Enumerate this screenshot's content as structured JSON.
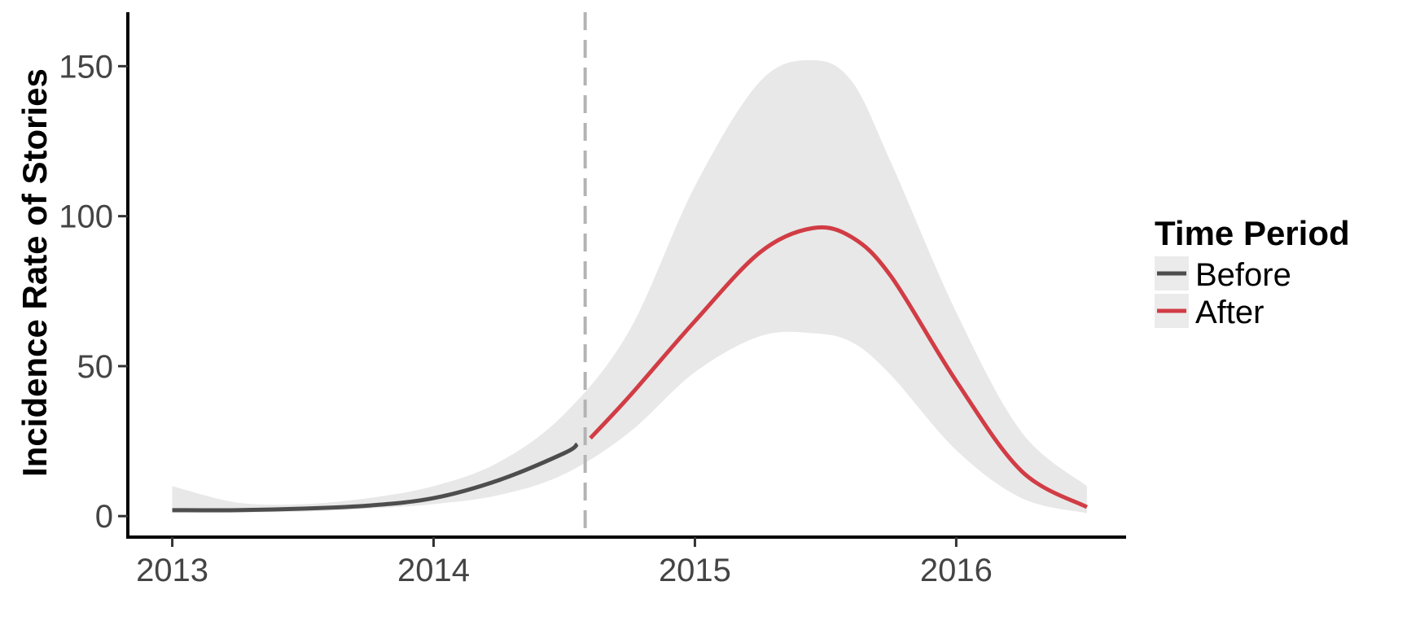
{
  "chart_data": {
    "type": "line",
    "title": "",
    "xlabel": "",
    "ylabel": "Incidence Rate of Stories",
    "xlim": [
      2012.83,
      2016.65
    ],
    "ylim": [
      -7,
      168
    ],
    "x_ticks": [
      {
        "value": 2013,
        "label": "2013"
      },
      {
        "value": 2014,
        "label": "2014"
      },
      {
        "value": 2015,
        "label": "2015"
      },
      {
        "value": 2016,
        "label": "2016"
      }
    ],
    "y_ticks": [
      {
        "value": 0,
        "label": "0"
      },
      {
        "value": 50,
        "label": "50"
      },
      {
        "value": 100,
        "label": "100"
      },
      {
        "value": 150,
        "label": "150"
      }
    ],
    "grid": false,
    "intervention_x": 2014.58,
    "legend": {
      "title": "Time Period",
      "placement": "right",
      "items": [
        {
          "label": "Before",
          "color": "#4d4d4d"
        },
        {
          "label": "After",
          "color": "#d13c45"
        }
      ]
    },
    "series": [
      {
        "name": "Before",
        "color": "#4d4d4d",
        "x": [
          2013.0,
          2013.25,
          2013.5,
          2013.75,
          2014.0,
          2014.25,
          2014.5,
          2014.55
        ],
        "y": [
          2,
          2,
          2.5,
          3.5,
          6,
          12,
          21,
          24
        ]
      },
      {
        "name": "After",
        "color": "#d13c45",
        "x": [
          2014.6,
          2014.75,
          2015.0,
          2015.25,
          2015.45,
          2015.6,
          2015.75,
          2016.0,
          2016.25,
          2016.5
        ],
        "y": [
          26,
          40,
          65,
          88,
          96,
          93,
          80,
          45,
          15,
          3
        ]
      }
    ],
    "band": {
      "color": "#e8e8e8",
      "x": [
        2013.0,
        2013.25,
        2013.5,
        2013.75,
        2014.0,
        2014.25,
        2014.5,
        2014.75,
        2015.0,
        2015.25,
        2015.45,
        2015.6,
        2015.75,
        2016.0,
        2016.25,
        2016.5
      ],
      "upper": [
        10,
        4.5,
        4,
        6,
        10,
        18,
        34,
        62,
        110,
        145,
        152,
        145,
        118,
        68,
        28,
        10
      ],
      "lower": [
        1,
        1.2,
        1.5,
        2.5,
        4,
        7,
        14,
        28,
        48,
        60,
        61,
        58,
        47,
        22,
        6,
        1
      ]
    }
  }
}
